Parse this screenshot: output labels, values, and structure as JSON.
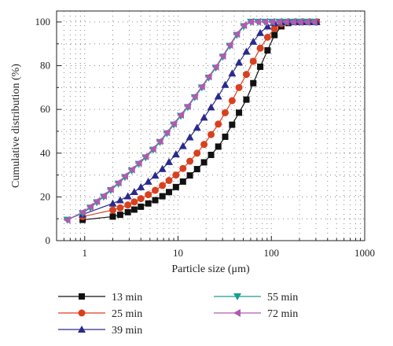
{
  "chart_data": {
    "type": "line",
    "title": "",
    "xlabel": "Particle size (μm)",
    "ylabel": "Cumulative distribution (%)",
    "x_scale": "log",
    "xlim": [
      0.5,
      1000
    ],
    "ylim": [
      0,
      105
    ],
    "x_ticks": [
      1,
      10,
      100,
      1000
    ],
    "x_tick_labels": [
      "1",
      "10",
      "100",
      "1000"
    ],
    "y_ticks": [
      0,
      20,
      40,
      60,
      80,
      100
    ],
    "y_tick_labels": [
      "0",
      "20",
      "40",
      "60",
      "80",
      "100"
    ],
    "grid": "dotted",
    "legend_position": "bottom",
    "series": [
      {
        "name": "13 min",
        "color": "#111111",
        "marker": "square",
        "points": [
          [
            0.95,
            9.5
          ],
          [
            2,
            11
          ],
          [
            2.4,
            11.8
          ],
          [
            2.9,
            13
          ],
          [
            3.4,
            14.2
          ],
          [
            4,
            15.5
          ],
          [
            4.8,
            17
          ],
          [
            5.7,
            18.5
          ],
          [
            6.8,
            20.3
          ],
          [
            8,
            22.2
          ],
          [
            9.5,
            24.5
          ],
          [
            11.3,
            27
          ],
          [
            13.4,
            29.8
          ],
          [
            16,
            32.7
          ],
          [
            19,
            35.8
          ],
          [
            22.6,
            39.2
          ],
          [
            27,
            43
          ],
          [
            32,
            47.5
          ],
          [
            38,
            53
          ],
          [
            45,
            58.5
          ],
          [
            54,
            64.5
          ],
          [
            64,
            72
          ],
          [
            76,
            79.5
          ],
          [
            91,
            87
          ],
          [
            108,
            94
          ],
          [
            128,
            98
          ],
          [
            152,
            99.5
          ],
          [
            181,
            100
          ],
          [
            215,
            100
          ],
          [
            256,
            100
          ],
          [
            305,
            100
          ]
        ]
      },
      {
        "name": "25 min",
        "color": "#d9401f",
        "marker": "circle",
        "points": [
          [
            0.95,
            11
          ],
          [
            2,
            14
          ],
          [
            2.4,
            15
          ],
          [
            2.9,
            16.3
          ],
          [
            3.4,
            17.7
          ],
          [
            4,
            19.2
          ],
          [
            4.8,
            21
          ],
          [
            5.7,
            23
          ],
          [
            6.8,
            25.2
          ],
          [
            8,
            27.5
          ],
          [
            9.5,
            30
          ],
          [
            11.3,
            33
          ],
          [
            13.4,
            36.3
          ],
          [
            16,
            40
          ],
          [
            19,
            44
          ],
          [
            22.6,
            48.5
          ],
          [
            27,
            53.3
          ],
          [
            32,
            58.5
          ],
          [
            38,
            64
          ],
          [
            45,
            70
          ],
          [
            54,
            76
          ],
          [
            64,
            82
          ],
          [
            76,
            88
          ],
          [
            91,
            93
          ],
          [
            108,
            97
          ],
          [
            128,
            99.2
          ],
          [
            152,
            100
          ],
          [
            181,
            100
          ],
          [
            215,
            100
          ],
          [
            256,
            100
          ],
          [
            305,
            100
          ]
        ]
      },
      {
        "name": "39 min",
        "color": "#2a2a8c",
        "marker": "triangle-up",
        "points": [
          [
            0.95,
            12
          ],
          [
            2,
            17
          ],
          [
            2.4,
            18.5
          ],
          [
            2.9,
            20.3
          ],
          [
            3.4,
            22.3
          ],
          [
            4,
            24.5
          ],
          [
            4.8,
            27
          ],
          [
            5.7,
            29.8
          ],
          [
            6.8,
            32.8
          ],
          [
            8,
            36
          ],
          [
            9.5,
            39.5
          ],
          [
            11.3,
            43.3
          ],
          [
            13.4,
            47.3
          ],
          [
            16,
            51.7
          ],
          [
            19,
            56.3
          ],
          [
            22.6,
            61
          ],
          [
            27,
            66
          ],
          [
            32,
            71.3
          ],
          [
            38,
            76.5
          ],
          [
            45,
            81.5
          ],
          [
            54,
            86.5
          ],
          [
            64,
            91
          ],
          [
            76,
            95
          ],
          [
            91,
            98
          ],
          [
            108,
            99.5
          ],
          [
            128,
            100
          ],
          [
            152,
            100
          ],
          [
            181,
            100
          ],
          [
            215,
            100
          ],
          [
            256,
            100
          ],
          [
            305,
            100
          ]
        ]
      },
      {
        "name": "55 min",
        "color": "#1a9e8f",
        "marker": "triangle-down",
        "points": [
          [
            0.65,
            9.5
          ],
          [
            0.95,
            12.5
          ],
          [
            1.15,
            15
          ],
          [
            1.35,
            17.5
          ],
          [
            1.6,
            20
          ],
          [
            1.9,
            23
          ],
          [
            2.3,
            26
          ],
          [
            2.7,
            29
          ],
          [
            3.2,
            32
          ],
          [
            3.8,
            35
          ],
          [
            4.5,
            38
          ],
          [
            5.4,
            41.5
          ],
          [
            6.4,
            45
          ],
          [
            7.6,
            49
          ],
          [
            9,
            53
          ],
          [
            10.7,
            57
          ],
          [
            12.7,
            61
          ],
          [
            15.1,
            65.5
          ],
          [
            18,
            70
          ],
          [
            21.3,
            74.5
          ],
          [
            25.4,
            79
          ],
          [
            30.2,
            84
          ],
          [
            35.9,
            89
          ],
          [
            42.6,
            94
          ],
          [
            50.7,
            98
          ],
          [
            60.3,
            100
          ],
          [
            71.7,
            100
          ],
          [
            85.3,
            100
          ],
          [
            101,
            100
          ],
          [
            121,
            100
          ],
          [
            143,
            100
          ],
          [
            171,
            100
          ],
          [
            203,
            100
          ],
          [
            241,
            100
          ],
          [
            287,
            100
          ]
        ]
      },
      {
        "name": "72 min",
        "color": "#b05ab0",
        "marker": "triangle-left",
        "points": [
          [
            0.65,
            9.5
          ],
          [
            0.95,
            13
          ],
          [
            1.15,
            15.5
          ],
          [
            1.35,
            18
          ],
          [
            1.6,
            20.5
          ],
          [
            1.9,
            23.5
          ],
          [
            2.3,
            26.5
          ],
          [
            2.7,
            29.5
          ],
          [
            3.2,
            32.5
          ],
          [
            3.8,
            35.5
          ],
          [
            4.5,
            38.5
          ],
          [
            5.4,
            42
          ],
          [
            6.4,
            45.5
          ],
          [
            7.6,
            49.5
          ],
          [
            9,
            53.5
          ],
          [
            10.7,
            57.5
          ],
          [
            12.7,
            61.5
          ],
          [
            15.1,
            66
          ],
          [
            18,
            70.5
          ],
          [
            21.3,
            75
          ],
          [
            25.4,
            79.5
          ],
          [
            30.2,
            84.5
          ],
          [
            35.9,
            89.5
          ],
          [
            42.6,
            94.5
          ],
          [
            50.7,
            98.5
          ],
          [
            60.3,
            100
          ],
          [
            71.7,
            100
          ],
          [
            85.3,
            100
          ],
          [
            101,
            100
          ],
          [
            121,
            100
          ],
          [
            143,
            100
          ],
          [
            171,
            100
          ],
          [
            203,
            100
          ],
          [
            241,
            100
          ],
          [
            287,
            100
          ]
        ]
      }
    ]
  }
}
